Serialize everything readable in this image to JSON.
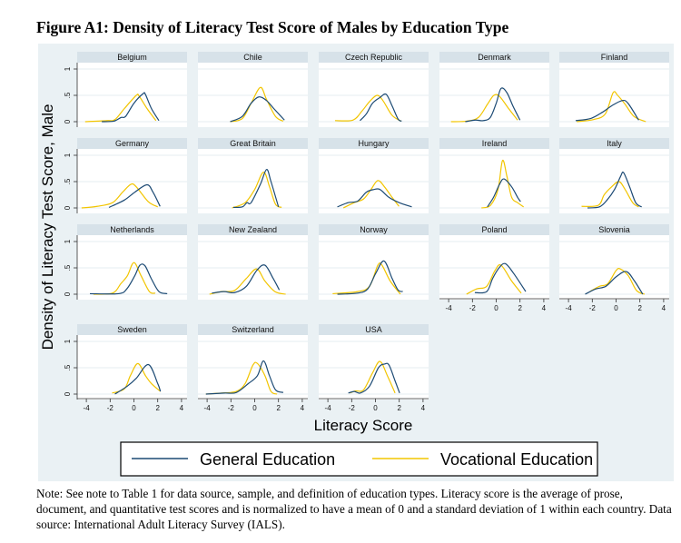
{
  "figure_title": "Figure A1:  Density of Literacy Test Score of Males by Education Type",
  "note": "Note:  See note to Table 1 for data source, sample, and definition of education types.  Literacy score is the average of prose, document, and quantitative test scores and is normalized to have a mean of 0 and a standard deviation of 1 within each country.  Data source: International Adult Literacy Survey (IALS).",
  "colors": {
    "general": "#1c4a74",
    "vocational": "#f2c500",
    "background": "#eaf1f4",
    "title_bar": "#d7e2e9"
  },
  "chart_data": {
    "type": "line",
    "title": "Density of Literacy Test Score of Males by Education Type",
    "xlabel": "Literacy Score",
    "ylabel": "Density of Literacy Test Score, Male",
    "xlim": [
      -4.75,
      4.75
    ],
    "ylim": [
      -0.1,
      1.1
    ],
    "xticks": [
      "-4",
      "-2",
      "0",
      "2",
      "4"
    ],
    "xtick_values": [
      -4,
      -2,
      0,
      2,
      4
    ],
    "yticks": [
      "0",
      ".5",
      "1"
    ],
    "ytick_values": [
      0,
      0.5,
      1
    ],
    "grid": true,
    "legend": {
      "placement": "bottom",
      "entries": [
        "General Education",
        "Vocational Education"
      ]
    },
    "panels": [
      {
        "name": "Belgium",
        "general": [
          [
            -2.7,
            0
          ],
          [
            -1.7,
            0.01
          ],
          [
            -1.07,
            0.08
          ],
          [
            -0.7,
            0.1
          ],
          [
            0,
            0.35
          ],
          [
            0.76,
            0.53
          ],
          [
            0.96,
            0.52
          ],
          [
            1.47,
            0.25
          ],
          [
            2.1,
            0.02
          ]
        ],
        "vocational": [
          [
            -4.1,
            0
          ],
          [
            -2.3,
            0.02
          ],
          [
            -1.6,
            0.04
          ],
          [
            -0.8,
            0.25
          ],
          [
            0.2,
            0.5
          ],
          [
            0.45,
            0.48
          ],
          [
            1.1,
            0.25
          ],
          [
            1.85,
            0.02
          ]
        ]
      },
      {
        "name": "Chile",
        "general": [
          [
            -2.06,
            0
          ],
          [
            -1.04,
            0.1
          ],
          [
            -0.3,
            0.35
          ],
          [
            0.35,
            0.47
          ],
          [
            1,
            0.4
          ],
          [
            1.6,
            0.25
          ],
          [
            2.5,
            0.03
          ]
        ],
        "vocational": [
          [
            -2.06,
            0
          ],
          [
            -1.04,
            0.06
          ],
          [
            -0.3,
            0.35
          ],
          [
            0.48,
            0.65
          ],
          [
            1,
            0.42
          ],
          [
            1.75,
            0.1
          ],
          [
            2.4,
            0.01
          ]
        ]
      },
      {
        "name": "Czech Republic",
        "general": [
          [
            -1.3,
            0.02
          ],
          [
            -0.76,
            0.15
          ],
          [
            -0.25,
            0.35
          ],
          [
            0.38,
            0.46
          ],
          [
            0.9,
            0.52
          ],
          [
            1.4,
            0.3
          ],
          [
            1.9,
            0.05
          ],
          [
            2.2,
            0.01
          ]
        ],
        "vocational": [
          [
            -3.4,
            0.02
          ],
          [
            -1.9,
            0.03
          ],
          [
            -1.14,
            0.2
          ],
          [
            -0.5,
            0.38
          ],
          [
            0.13,
            0.5
          ],
          [
            0.63,
            0.4
          ],
          [
            1.4,
            0.12
          ],
          [
            2.15,
            0.01
          ]
        ]
      },
      {
        "name": "Denmark",
        "general": [
          [
            -2.6,
            0
          ],
          [
            -1.75,
            0.03
          ],
          [
            -1.1,
            0.02
          ],
          [
            -0.5,
            0.08
          ],
          [
            0,
            0.35
          ],
          [
            0.4,
            0.63
          ],
          [
            0.9,
            0.55
          ],
          [
            1.4,
            0.3
          ],
          [
            2,
            0.03
          ]
        ],
        "vocational": [
          [
            -3.8,
            0
          ],
          [
            -2.5,
            0.01
          ],
          [
            -1.5,
            0.08
          ],
          [
            -0.74,
            0.33
          ],
          [
            -0.2,
            0.5
          ],
          [
            0.28,
            0.48
          ],
          [
            1.04,
            0.25
          ],
          [
            1.8,
            0.03
          ]
        ]
      },
      {
        "name": "Finland",
        "general": [
          [
            -3.4,
            0.02
          ],
          [
            -2.15,
            0.06
          ],
          [
            -1.14,
            0.18
          ],
          [
            -0.38,
            0.3
          ],
          [
            0.5,
            0.4
          ],
          [
            1.0,
            0.35
          ],
          [
            1.9,
            0.03
          ]
        ],
        "vocational": [
          [
            -3.3,
            0
          ],
          [
            -1.9,
            0.04
          ],
          [
            -0.9,
            0.15
          ],
          [
            -0.25,
            0.55
          ],
          [
            0.13,
            0.5
          ],
          [
            0.76,
            0.33
          ],
          [
            1.5,
            0.1
          ],
          [
            2.5,
            0
          ]
        ]
      },
      {
        "name": "Germany",
        "general": [
          [
            -2.1,
            0.01
          ],
          [
            -0.8,
            0.15
          ],
          [
            0.08,
            0.3
          ],
          [
            1.1,
            0.44
          ],
          [
            1.6,
            0.3
          ],
          [
            2.2,
            0.03
          ]
        ],
        "vocational": [
          [
            -4.4,
            0
          ],
          [
            -3.1,
            0.03
          ],
          [
            -1.8,
            0.1
          ],
          [
            -0.95,
            0.3
          ],
          [
            -0.25,
            0.45
          ],
          [
            0.2,
            0.4
          ],
          [
            1.2,
            0.12
          ],
          [
            2,
            0.02
          ]
        ]
      },
      {
        "name": "Great Britain",
        "general": [
          [
            -1.8,
            0.01
          ],
          [
            -1.04,
            0.02
          ],
          [
            -0.65,
            0.1
          ],
          [
            -0.3,
            0.1
          ],
          [
            0.48,
            0.45
          ],
          [
            1,
            0.73
          ],
          [
            1.37,
            0.5
          ],
          [
            2,
            0.02
          ]
        ],
        "vocational": [
          [
            -1.9,
            0
          ],
          [
            -0.8,
            0.1
          ],
          [
            0,
            0.35
          ],
          [
            0.74,
            0.68
          ],
          [
            1.25,
            0.4
          ],
          [
            1.75,
            0.07
          ],
          [
            2.26,
            0.01
          ]
        ]
      },
      {
        "name": "Hungary",
        "general": [
          [
            -3.2,
            0.02
          ],
          [
            -2.3,
            0.1
          ],
          [
            -1.5,
            0.13
          ],
          [
            -0.76,
            0.3
          ],
          [
            -0.13,
            0.35
          ],
          [
            0.38,
            0.35
          ],
          [
            1.14,
            0.2
          ],
          [
            2,
            0.1
          ],
          [
            3.05,
            0.02
          ]
        ],
        "vocational": [
          [
            -2.7,
            0
          ],
          [
            -1.8,
            0.1
          ],
          [
            -1.0,
            0.17
          ],
          [
            -0.38,
            0.35
          ],
          [
            0.2,
            0.52
          ],
          [
            0.76,
            0.4
          ],
          [
            1.4,
            0.2
          ],
          [
            1.98,
            0.03
          ]
        ]
      },
      {
        "name": "Ireland",
        "general": [
          [
            -0.74,
            0.02
          ],
          [
            -0.23,
            0.2
          ],
          [
            0.28,
            0.45
          ],
          [
            0.66,
            0.55
          ],
          [
            1.3,
            0.4
          ],
          [
            1.8,
            0.2
          ],
          [
            2.05,
            0.12
          ]
        ],
        "vocational": [
          [
            -1.24,
            0
          ],
          [
            -0.48,
            0.05
          ],
          [
            0.15,
            0.35
          ],
          [
            0.53,
            0.9
          ],
          [
            0.9,
            0.6
          ],
          [
            1.3,
            0.2
          ],
          [
            1.8,
            0.1
          ],
          [
            2.3,
            0.02
          ]
        ]
      },
      {
        "name": "Italy",
        "general": [
          [
            -2.4,
            0
          ],
          [
            -1.4,
            0.02
          ],
          [
            -0.76,
            0.15
          ],
          [
            -0.13,
            0.35
          ],
          [
            0.38,
            0.6
          ],
          [
            0.63,
            0.67
          ],
          [
            1.14,
            0.4
          ],
          [
            1.65,
            0.1
          ],
          [
            2.15,
            0.02
          ]
        ],
        "vocational": [
          [
            -2.9,
            0.03
          ],
          [
            -1.5,
            0.05
          ],
          [
            -1.0,
            0.25
          ],
          [
            -0.38,
            0.4
          ],
          [
            0.25,
            0.5
          ],
          [
            0.76,
            0.35
          ],
          [
            1.4,
            0.1
          ],
          [
            1.9,
            0.02
          ]
        ]
      },
      {
        "name": "Netherlands",
        "general": [
          [
            -3.7,
            0.01
          ],
          [
            -1.3,
            0.01
          ],
          [
            -0.6,
            0.1
          ],
          [
            0.07,
            0.35
          ],
          [
            0.5,
            0.55
          ],
          [
            0.93,
            0.54
          ],
          [
            1.45,
            0.3
          ],
          [
            2.1,
            0.05
          ],
          [
            2.8,
            0.01
          ]
        ],
        "vocational": [
          [
            -3.4,
            0
          ],
          [
            -1.8,
            0.02
          ],
          [
            -1.1,
            0.2
          ],
          [
            -0.55,
            0.35
          ],
          [
            0,
            0.6
          ],
          [
            0.6,
            0.35
          ],
          [
            1.3,
            0.05
          ],
          [
            1.8,
            0.02
          ]
        ]
      },
      {
        "name": "New Zealand",
        "general": [
          [
            -3.6,
            0.02
          ],
          [
            -2.6,
            0.05
          ],
          [
            -1.7,
            0.03
          ],
          [
            -0.7,
            0.15
          ],
          [
            0.17,
            0.45
          ],
          [
            0.86,
            0.55
          ],
          [
            1.55,
            0.3
          ],
          [
            2.07,
            0.08
          ]
        ],
        "vocational": [
          [
            -3.8,
            0
          ],
          [
            -2.8,
            0.05
          ],
          [
            -1.7,
            0.07
          ],
          [
            -0.7,
            0.3
          ],
          [
            0.17,
            0.48
          ],
          [
            0.86,
            0.25
          ],
          [
            1.7,
            0.05
          ],
          [
            2.6,
            0
          ]
        ]
      },
      {
        "name": "Norway",
        "general": [
          [
            -3.2,
            0
          ],
          [
            -1.5,
            0.02
          ],
          [
            -0.65,
            0.1
          ],
          [
            0.03,
            0.4
          ],
          [
            0.72,
            0.63
          ],
          [
            1.4,
            0.3
          ],
          [
            1.9,
            0.08
          ],
          [
            2.3,
            0.05
          ]
        ],
        "vocational": [
          [
            -3.6,
            0.01
          ],
          [
            -1.5,
            0.05
          ],
          [
            -0.5,
            0.15
          ],
          [
            0.2,
            0.55
          ],
          [
            0.55,
            0.55
          ],
          [
            1.24,
            0.25
          ],
          [
            2.1,
            0
          ]
        ]
      },
      {
        "name": "Poland",
        "general": [
          [
            -1.8,
            0.03
          ],
          [
            -0.8,
            0.05
          ],
          [
            -0.3,
            0.3
          ],
          [
            0.24,
            0.5
          ],
          [
            0.76,
            0.58
          ],
          [
            1.45,
            0.4
          ],
          [
            2.48,
            0.05
          ]
        ],
        "vocational": [
          [
            -2.5,
            0
          ],
          [
            -1.65,
            0.1
          ],
          [
            -0.8,
            0.15
          ],
          [
            -0.1,
            0.45
          ],
          [
            0.41,
            0.55
          ],
          [
            1.3,
            0.25
          ],
          [
            2.1,
            0.02
          ]
        ]
      },
      {
        "name": "Slovenia",
        "general": [
          [
            -2.6,
            0
          ],
          [
            -1.7,
            0.1
          ],
          [
            -0.86,
            0.15
          ],
          [
            0,
            0.33
          ],
          [
            0.86,
            0.43
          ],
          [
            1.55,
            0.25
          ],
          [
            2.24,
            0
          ]
        ],
        "vocational": [
          [
            -2.2,
            0.05
          ],
          [
            -1.4,
            0.15
          ],
          [
            -0.7,
            0.2
          ],
          [
            0,
            0.45
          ],
          [
            0.35,
            0.48
          ],
          [
            1.03,
            0.35
          ],
          [
            1.72,
            0.07
          ],
          [
            2.4,
            0
          ]
        ]
      },
      {
        "name": "Sweden",
        "general": [
          [
            -1.6,
            0
          ],
          [
            -0.56,
            0.15
          ],
          [
            0.2,
            0.3
          ],
          [
            1.22,
            0.56
          ],
          [
            2,
            0.2
          ],
          [
            2.23,
            0.05
          ]
        ],
        "vocational": [
          [
            -1.83,
            0.02
          ],
          [
            -0.8,
            0.1
          ],
          [
            -0.3,
            0.35
          ],
          [
            0.33,
            0.58
          ],
          [
            0.97,
            0.35
          ],
          [
            1.47,
            0.2
          ],
          [
            2.23,
            0.05
          ]
        ]
      },
      {
        "name": "Switzerland",
        "general": [
          [
            -4.1,
            0
          ],
          [
            -2.56,
            0.02
          ],
          [
            -1.55,
            0.03
          ],
          [
            -0.53,
            0.2
          ],
          [
            0.23,
            0.35
          ],
          [
            0.74,
            0.63
          ],
          [
            1.24,
            0.35
          ],
          [
            1.75,
            0.08
          ],
          [
            2.4,
            0.03
          ]
        ],
        "vocational": [
          [
            -4.1,
            0
          ],
          [
            -2.8,
            0.02
          ],
          [
            -1.55,
            0.05
          ],
          [
            -0.8,
            0.2
          ],
          [
            -0.15,
            0.55
          ],
          [
            0.23,
            0.58
          ],
          [
            0.86,
            0.35
          ],
          [
            1.37,
            0.05
          ],
          [
            1.88,
            0
          ]
        ]
      },
      {
        "name": "USA",
        "general": [
          [
            -2.28,
            0.02
          ],
          [
            -1.78,
            0.05
          ],
          [
            -1.27,
            0.02
          ],
          [
            -0.5,
            0.15
          ],
          [
            0.25,
            0.5
          ],
          [
            0.76,
            0.57
          ],
          [
            1.14,
            0.55
          ],
          [
            1.65,
            0.25
          ],
          [
            2.03,
            0.02
          ]
        ],
        "vocational": [
          [
            -2.16,
            0.02
          ],
          [
            -1.65,
            0.06
          ],
          [
            -1.0,
            0.08
          ],
          [
            -0.25,
            0.4
          ],
          [
            0.38,
            0.62
          ],
          [
            1.0,
            0.35
          ],
          [
            1.65,
            0.02
          ]
        ]
      }
    ]
  }
}
